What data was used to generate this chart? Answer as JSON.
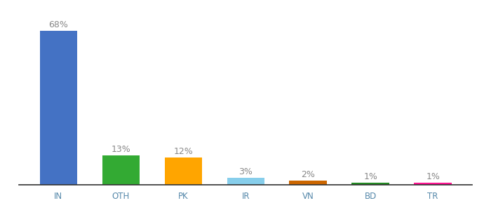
{
  "categories": [
    "IN",
    "OTH",
    "PK",
    "IR",
    "VN",
    "BD",
    "TR"
  ],
  "values": [
    68,
    13,
    12,
    3,
    2,
    1,
    1
  ],
  "bar_colors": [
    "#4472C4",
    "#33AA33",
    "#FFA500",
    "#87CEEB",
    "#CC6600",
    "#228B22",
    "#FF1493"
  ],
  "label_color": "#888888",
  "tick_color": "#5588AA",
  "background_color": "#ffffff",
  "ylim": [
    0,
    75
  ],
  "bar_width": 0.6,
  "label_fontsize": 9,
  "tick_fontsize": 8.5
}
